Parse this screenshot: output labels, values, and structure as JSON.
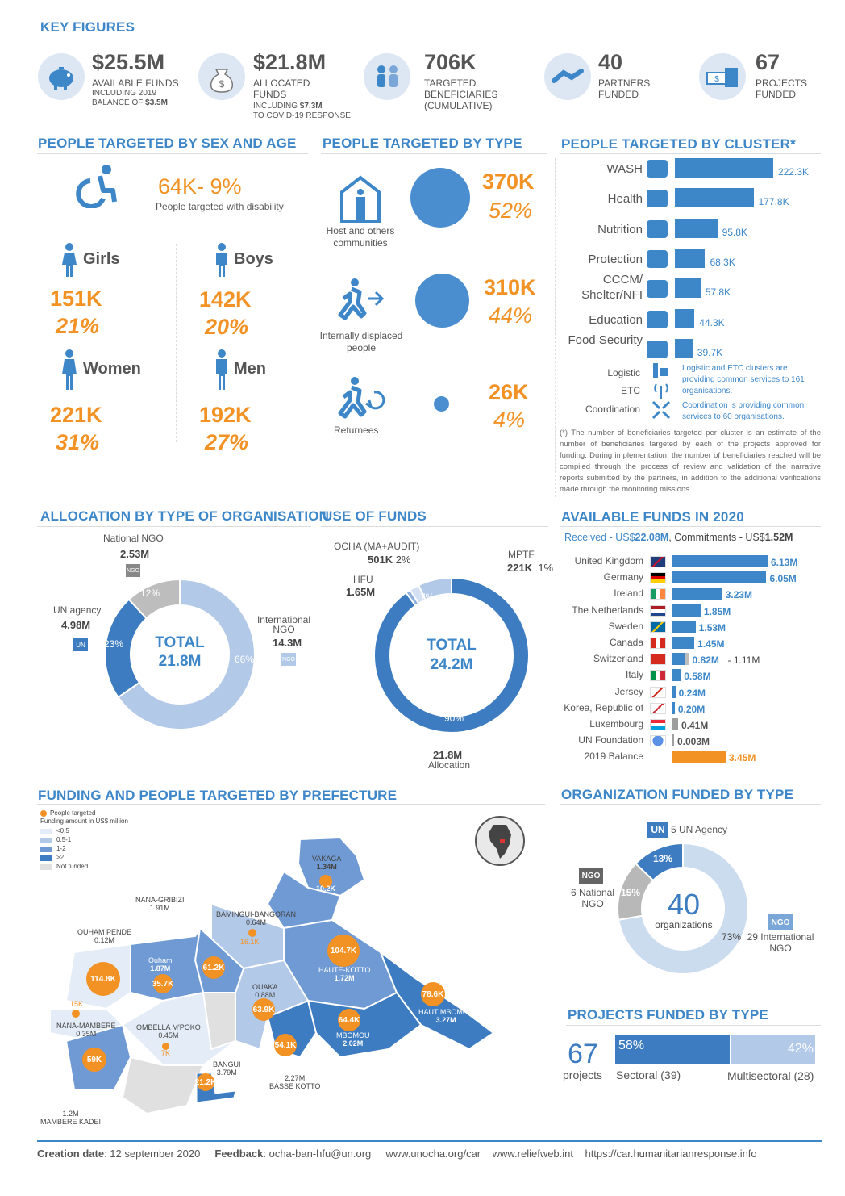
{
  "key_figures": {
    "title": "KEY FIGURES",
    "items": [
      {
        "value": "$25.5M",
        "label1": "AVAILABLE FUNDS",
        "label2": "INCLUDING 2019",
        "label3": "BALANCE OF",
        "label3b": "$3.5M"
      },
      {
        "value": "$21.8M",
        "label1": "ALLOCATED",
        "label2": "FUNDS",
        "label3": "INCLUDING",
        "label3b": "$7.3M",
        "label4": "TO COVID-19 RESPONSE"
      },
      {
        "value": "706K",
        "label1": "TARGETED",
        "label2": "BENEFICIARIES",
        "label3": "(CUMULATIVE)"
      },
      {
        "value": "40",
        "label1": "PARTNERS",
        "label2": "FUNDED"
      },
      {
        "value": "67",
        "label1": "PROJECTS",
        "label2": "FUNDED"
      }
    ]
  },
  "sex_age": {
    "title": "PEOPLE TARGETED BY SEX AND AGE",
    "disability_value": "64K- 9%",
    "disability_label": "People targeted with disability",
    "groups": [
      {
        "name": "Girls",
        "count": "151K",
        "pct": "21%"
      },
      {
        "name": "Boys",
        "count": "142K",
        "pct": "20%"
      },
      {
        "name": "Women",
        "count": "221K",
        "pct": "31%"
      },
      {
        "name": "Men",
        "count": "192K",
        "pct": "27%"
      }
    ]
  },
  "by_type": {
    "title": "PEOPLE TARGETED BY TYPE",
    "items": [
      {
        "label": "Host and others communities",
        "count": "370K",
        "pct": "52%",
        "share": 52
      },
      {
        "label": "Internally displaced people",
        "count": "310K",
        "pct": "44%",
        "share": 44
      },
      {
        "label": "Returnees",
        "count": "26K",
        "pct": "4%",
        "share": 4
      }
    ]
  },
  "by_cluster": {
    "title": "PEOPLE TARGETED BY CLUSTER*",
    "items": [
      {
        "label": "WASH",
        "value": 222.3,
        "text": "222.3K"
      },
      {
        "label": "Health",
        "value": 177.8,
        "text": "177.8K"
      },
      {
        "label": "Nutrition",
        "value": 95.8,
        "text": "95.8K"
      },
      {
        "label": "Protection",
        "value": 68.3,
        "text": "68.3K"
      },
      {
        "label": "CCCM/ Shelter/NFI",
        "value": 57.8,
        "text": "57.8K"
      },
      {
        "label": "Education",
        "value": 44.3,
        "text": "44.3K"
      },
      {
        "label": "Food Security",
        "value": 39.7,
        "text": "39.7K"
      }
    ],
    "logistic_label": "Logistic",
    "etc_label": "ETC",
    "coordination_label": "Coordination",
    "logistic_note": "Logistic and ETC clusters are providing common services to 161 organisations.",
    "coordination_note": "Coordination is providing common services to 60 organisations.",
    "footnote": "(*) The number of beneficiaries targeted per cluster is an estimate of the number of beneficiaries targeted by each of the projects approved for funding. During implementation, the number of beneficiaries reached will be compiled through the process of review and validation of the narrative reports submitted by the partners, in addition to the additional verifications made through the monitoring missions."
  },
  "allocation_org": {
    "title": "ALLOCATION BY TYPE OF ORGANISATION",
    "total_label": "TOTAL",
    "total_value": "21.8M",
    "segments": [
      {
        "name": "International NGO",
        "name1": "International",
        "name2": "NGO",
        "amount": "14.3M",
        "pct": "66%",
        "share": 66,
        "color": "#b3c9e8"
      },
      {
        "name": "UN agency",
        "amount": "4.98M",
        "pct": "23%",
        "share": 23,
        "color": "#3d7cc1"
      },
      {
        "name": "National NGO",
        "amount": "2.53M",
        "pct": "12%",
        "share": 12,
        "color": "#bdbdbd"
      }
    ]
  },
  "use_of_funds": {
    "title": "USE OF FUNDS",
    "total_label": "TOTAL",
    "total_value": "24.2M",
    "segments": [
      {
        "name": "Allocation",
        "amount": "21.8M",
        "pct": "90%",
        "share": 90,
        "color": "#3d7cc1"
      },
      {
        "name": "HFU",
        "amount": "1.65M",
        "pct": "7%",
        "share": 7,
        "color": "#b3c9e8"
      },
      {
        "name": "OCHA  (MA+AUDIT)",
        "amount": "501K",
        "pct": "2%",
        "share": 2,
        "color": "#d4e1f2"
      },
      {
        "name": "MPTF",
        "amount": "221K",
        "pct": "1%",
        "share": 1,
        "color": "#8fb0dc"
      }
    ]
  },
  "available_funds": {
    "title": "AVAILABLE FUNDS IN 2020",
    "received_label": "Received - US$",
    "received_value": "22.08M",
    "commit_label": ", Commitments - US$",
    "commit_value": "1.52M",
    "donors": [
      {
        "name": "United Kingdom",
        "value": 6.13,
        "text": "6.13M",
        "flag": "uk"
      },
      {
        "name": "Germany",
        "value": 6.05,
        "text": "6.05M",
        "flag": "de"
      },
      {
        "name": "Ireland",
        "value": 3.23,
        "text": "3.23M",
        "flag": "ie"
      },
      {
        "name": "The Netherlands",
        "value": 1.85,
        "text": "1.85M",
        "flag": "nl"
      },
      {
        "name": "Sweden",
        "value": 1.53,
        "text": "1.53M",
        "flag": "se"
      },
      {
        "name": "Canada",
        "value": 1.45,
        "text": "1.45M",
        "flag": "ca"
      },
      {
        "name": "Switzerland",
        "value": 0.82,
        "text": "0.82M",
        "extra": 1.11,
        "extra_text": "- 1.11M",
        "flag": "ch"
      },
      {
        "name": "Italy",
        "value": 0.58,
        "text": "0.58M",
        "flag": "it"
      },
      {
        "name": "Jersey",
        "value": 0.24,
        "text": "0.24M",
        "flag": "je"
      },
      {
        "name": "Korea, Republic of",
        "value": 0.2,
        "text": "0.20M",
        "flag": "kr"
      },
      {
        "name": "Luxembourg",
        "value": 0.41,
        "text": "0.41M",
        "flag": "lu",
        "grey": true
      },
      {
        "name": "UN Foundation",
        "value": 0.003,
        "text": "0.003M",
        "flag": "un",
        "grey": true
      },
      {
        "name": "2019 Balance",
        "value": 3.45,
        "text": "3.45M",
        "flag": "none",
        "orange": true
      }
    ]
  },
  "prefecture": {
    "title": "FUNDING AND PEOPLE TARGETED BY PREFECTURE",
    "legend": {
      "people": "People targeted",
      "funding": "Funding amount in US$ million",
      "ranges": [
        "<0.5",
        "0.5-1",
        "1-2",
        ">2",
        "Not funded"
      ]
    },
    "regions": [
      {
        "name": "VAKAGA",
        "amount": "1.34M",
        "people": "10.2K"
      },
      {
        "name": "NANA-GRIBIZI",
        "amount": "1.91M",
        "people": "61.2K"
      },
      {
        "name": "BAMINGUI-BANGORAN",
        "amount": "0.64M",
        "people": "16.1K"
      },
      {
        "name": "OUHAM PENDE",
        "amount": "0.12M",
        "people": "114.8K"
      },
      {
        "name": "Ouham",
        "amount": "1.87M",
        "people": "35.7K"
      },
      {
        "name": "HAUTE-KOTTO",
        "amount": "1.72M",
        "people": "104.7K"
      },
      {
        "name": "OUAKA",
        "amount": "0.88M",
        "people": "63.9K"
      },
      {
        "name": "HAUT MBOMOU",
        "amount": "3.27M",
        "people": "78.6K"
      },
      {
        "name": "MBOMOU",
        "amount": "2.02M",
        "people": "64.4K"
      },
      {
        "name": "NANA-MAMBERE",
        "amount": "0.35M",
        "people": "15K"
      },
      {
        "name": "OMBELLA M'POKO",
        "amount": "0.45M",
        "people": "7K"
      },
      {
        "name": "BANGUI",
        "amount": "3.79M",
        "people": "21.2K"
      },
      {
        "name": "BASSE KOTTO",
        "amount": "2.27M",
        "people": "54.1K"
      },
      {
        "name": "MAMBERE KADEI",
        "amount": "1.2M",
        "people": "59K"
      }
    ]
  },
  "org_funded": {
    "title": "ORGANIZATION FUNDED BY TYPE",
    "total": "40",
    "total_label": "organizations",
    "segments": [
      {
        "name": "29 International NGO",
        "name1": "29 International",
        "name2": "NGO",
        "pct": "73%",
        "share": 73,
        "color": "#ccdcef"
      },
      {
        "name": "5 UN Agency",
        "pct": "13%",
        "share": 13,
        "color": "#3d7cc1"
      },
      {
        "name": "6 National NGO",
        "name1": "6 National",
        "name2": "NGO",
        "pct": "15%",
        "share": 15,
        "color": "#b8b8b8"
      }
    ]
  },
  "projects_type": {
    "title": "PROJECTS FUNDED BY TYPE",
    "total": "67",
    "total_label": "projects",
    "sectoral_pct": "58%",
    "sectoral_label": "Sectoral (39)",
    "sectoral_share": 58,
    "multi_pct": "42%",
    "multi_label": "Multisectoral (28)",
    "multi_share": 42
  },
  "footer": {
    "creation_label": "Creation date",
    "creation_value": ": 12 september 2020",
    "feedback_label": "Feedback",
    "feedback_value": ": ocha-ban-hfu@un.org",
    "link1": "www.unocha.org/car",
    "link2": "www.reliefweb.int",
    "link3": "https://car.humanitarianresponse.info"
  },
  "colors": {
    "accent": "#3d87c9",
    "orange": "#f39224",
    "dark_blue": "#3d7cc1",
    "light_blue": "#b3c9e8",
    "grey": "#bdbdbd"
  }
}
